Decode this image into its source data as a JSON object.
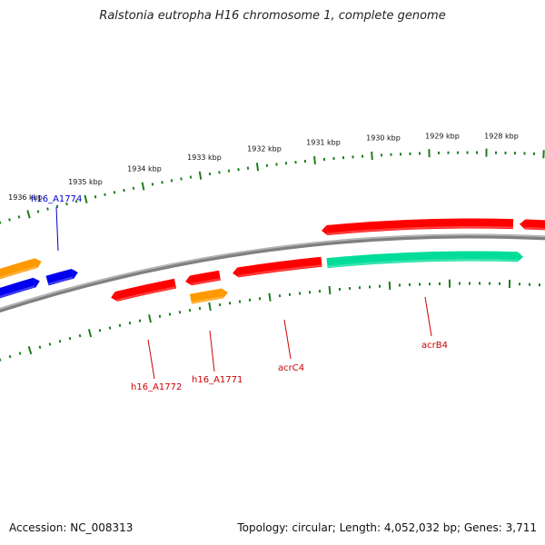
{
  "title": "Ralstonia eutropha H16 chromosome 1, complete genome",
  "footer": {
    "accession": "Accession: NC_008313",
    "topology": "Topology: circular; Length: 4,052,032 bp; Genes: 3,711"
  },
  "colors": {
    "backbone": "#808080",
    "ticks": "#1e7d1e",
    "red": "#ff0000",
    "orange": "#ff9900",
    "blue": "#0000ee",
    "teal": "#00dd99",
    "label_red": "#cc0000",
    "label_blue": "#0000cc"
  },
  "kbp_labels": [
    "1936 kbp",
    "1935 kbp",
    "1934 kbp",
    "1933 kbp",
    "1932 kbp",
    "1931 kbp",
    "1930 kbp",
    "1929 kbp",
    "1928 kbp"
  ],
  "gene_labels": [
    {
      "name": "h16_A1774",
      "color": "blue"
    },
    {
      "name": "h16_A1772",
      "color": "red"
    },
    {
      "name": "h16_A1771",
      "color": "red"
    },
    {
      "name": "acrC4",
      "color": "red"
    },
    {
      "name": "acrB4",
      "color": "red"
    }
  ]
}
